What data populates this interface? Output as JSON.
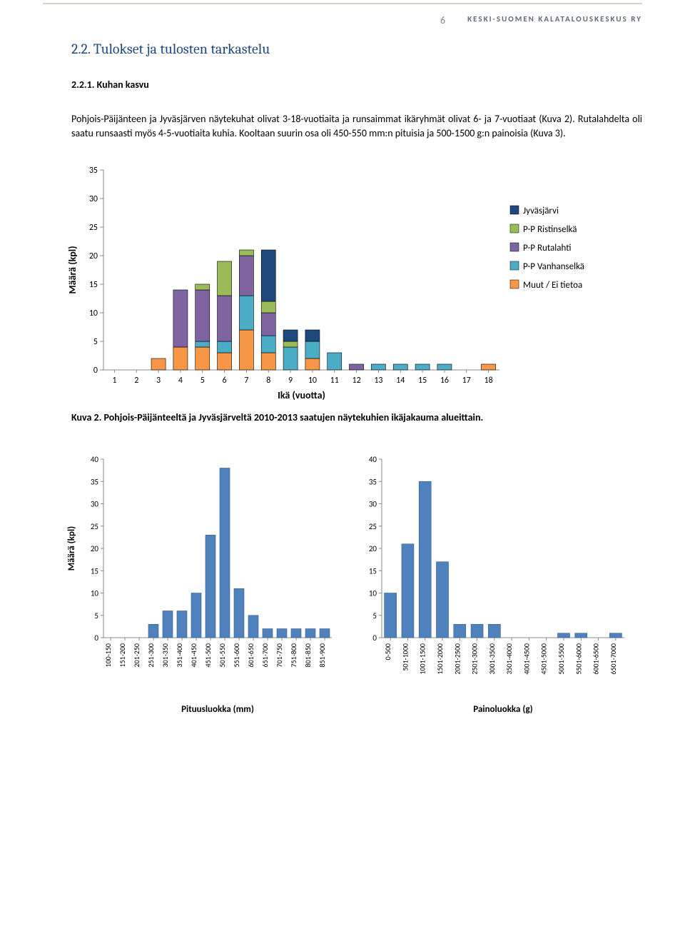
{
  "header": {
    "page_number": "6",
    "org": "KESKI-SUOMEN KALATALOUSKESKUS RY"
  },
  "section_title": "2.2. Tulokset ja tulosten tarkastelu",
  "subsection": "2.2.1. Kuhan kasvu",
  "paragraph": "Pohjois-Päijänteen ja Jyväsjärven näytekuhat olivat 3-18-vuotiaita ja runsaimmat ikäryhmät olivat 6- ja 7-vuotiaat (Kuva 2). Rutalahdelta oli saatu runsaasti myös 4-5-vuotiaita kuhia. Kooltaan suurin osa oli 450-550 mm:n pituisia ja 500-1500 g:n painoisia (Kuva 3).",
  "chart1": {
    "type": "stacked-bar",
    "ylabel": "Määrä (kpl)",
    "xlabel": "Ikä (vuotta)",
    "ylim": [
      0,
      35
    ],
    "ytick_step": 5,
    "categories": [
      "1",
      "2",
      "3",
      "4",
      "5",
      "6",
      "7",
      "8",
      "9",
      "10",
      "11",
      "12",
      "13",
      "14",
      "15",
      "16",
      "17",
      "18"
    ],
    "series": [
      {
        "name": "Muut / Ei tietoa",
        "color": "#f79646",
        "values": [
          0,
          0,
          2,
          4,
          4,
          3,
          7,
          3,
          0,
          2,
          0,
          0,
          0,
          0,
          0,
          0,
          0,
          1
        ]
      },
      {
        "name": "P-P Vanhanselkä",
        "color": "#4bacc6",
        "values": [
          0,
          0,
          0,
          0,
          1,
          2,
          6,
          3,
          4,
          3,
          3,
          0,
          1,
          1,
          1,
          1,
          0,
          0
        ]
      },
      {
        "name": "P-P Rutalahti",
        "color": "#8064a2",
        "values": [
          0,
          0,
          0,
          10,
          9,
          8,
          7,
          4,
          0,
          0,
          0,
          1,
          0,
          0,
          0,
          0,
          0,
          0
        ]
      },
      {
        "name": "P-P Ristinselkä",
        "color": "#9bbb59",
        "values": [
          0,
          0,
          0,
          0,
          1,
          6,
          1,
          2,
          1,
          0,
          0,
          0,
          0,
          0,
          0,
          0,
          0,
          0
        ]
      },
      {
        "name": "Jyväsjärvi",
        "color": "#1f497d",
        "values": [
          0,
          0,
          0,
          0,
          0,
          0,
          0,
          9,
          2,
          2,
          0,
          0,
          0,
          0,
          0,
          0,
          0,
          0
        ]
      }
    ],
    "legend": [
      "Jyväsjärvi",
      "P-P Ristinselkä",
      "P-P Rutalahti",
      "P-P Vanhanselkä",
      "Muut / Ei tietoa"
    ],
    "legend_colors": [
      "#1f497d",
      "#9bbb59",
      "#8064a2",
      "#4bacc6",
      "#f79646"
    ],
    "background": "#ffffff",
    "axis_color": "#888888",
    "grid_color": "#d0d0d0",
    "tick_color": "#888888",
    "bar_border": "#000000"
  },
  "caption1": "Kuva 2. Pohjois-Päijänteeltä ja Jyväsjärveltä 2010-2013 saatujen näytekuhien ikäjakauma alueittain.",
  "chart2": {
    "type": "bar",
    "ylabel": "Määrä (kpl)",
    "xlabel": "Pituusluokka (mm)",
    "ylim": [
      0,
      40
    ],
    "ytick_step": 5,
    "categories": [
      "100-150",
      "151-200",
      "201-250",
      "251-300",
      "301-350",
      "351-400",
      "401-450",
      "451-500",
      "501-550",
      "551-600",
      "601-650",
      "651-700",
      "701-750",
      "751-800",
      "801-850",
      "851-900"
    ],
    "values": [
      0,
      0,
      0,
      3,
      6,
      6,
      10,
      23,
      38,
      11,
      5,
      2,
      2,
      2,
      2,
      2
    ],
    "bar_color": "#4f81bd",
    "bar_border": "#385d8a",
    "axis_color": "#888888"
  },
  "chart3": {
    "type": "bar",
    "xlabel": "Painoluokka (g)",
    "ylim": [
      0,
      40
    ],
    "ytick_step": 5,
    "categories": [
      "0-500",
      "501-1000",
      "1001-1500",
      "1501-2000",
      "2001-2500",
      "2501-3000",
      "3001-3500",
      "3501-4000",
      "4001-4500",
      "4501-5000",
      "5001-5500",
      "5501-6000",
      "6001-6500",
      "6501-7000"
    ],
    "values": [
      10,
      21,
      35,
      17,
      3,
      3,
      3,
      0,
      0,
      0,
      1,
      1,
      0,
      1
    ],
    "bar_color": "#4f81bd",
    "bar_border": "#385d8a",
    "axis_color": "#888888"
  }
}
